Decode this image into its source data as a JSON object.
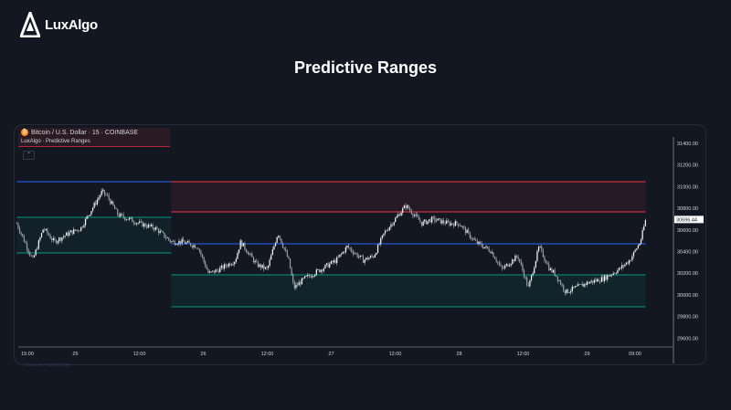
{
  "brand": {
    "logo_text": "LuxAlgo"
  },
  "page_title": "Predictive Ranges",
  "chart_header": {
    "symbol": "Bitcoin / U.S. Dollar · 15 · COINBASE",
    "indicator": "LuxAlgo · Predictive Ranges",
    "collapse_icon": "chevron-up-icon"
  },
  "credit": "Charts by TradingView",
  "colors": {
    "background": "#131722",
    "resistance": "#f23645",
    "average": "#2962ff",
    "support": "#089981",
    "candle": "#ffffff"
  },
  "chart_data": {
    "type": "candlestick",
    "title": "",
    "yticks": [
      31400,
      31200,
      31000,
      30800,
      30600,
      30400,
      30200,
      30000,
      29800,
      29600
    ],
    "ytick_labels": [
      "31400.00",
      "31200.00",
      "31000.00",
      "30800.00",
      "30600.00",
      "30400.00",
      "30200.00",
      "30000.00",
      "29800.00",
      "29600.00"
    ],
    "ylim": [
      29520,
      31450
    ],
    "xtick_labels": [
      {
        "t": "24 15:00",
        "label": "15:00"
      },
      {
        "t": "25 00:00",
        "label": "25"
      },
      {
        "t": "25 12:00",
        "label": "12:00"
      },
      {
        "t": "26 00:00",
        "label": "26"
      },
      {
        "t": "26 12:00",
        "label": "12:00"
      },
      {
        "t": "27 00:00",
        "label": "27"
      },
      {
        "t": "27 12:00",
        "label": "12:00"
      },
      {
        "t": "28 00:00",
        "label": "28"
      },
      {
        "t": "28 12:00",
        "label": "12:00"
      },
      {
        "t": "29 00:00",
        "label": "29"
      },
      {
        "t": "29 09:00",
        "label": "09:00"
      }
    ],
    "last_price": 30696.44,
    "last_price_label": "30696.44",
    "price_path": [
      [
        "24 13:00",
        30660
      ],
      [
        "24 16:00",
        30320
      ],
      [
        "24 18:00",
        30615
      ],
      [
        "24 20:00",
        30490
      ],
      [
        "24 23:00",
        30575
      ],
      [
        "25 01:00",
        30615
      ],
      [
        "25 03:00",
        30785
      ],
      [
        "25 05:00",
        30955
      ],
      [
        "25 06:00",
        30910
      ],
      [
        "25 08:00",
        30740
      ],
      [
        "25 12:00",
        30660
      ],
      [
        "25 15:00",
        30615
      ],
      [
        "25 18:00",
        30490
      ],
      [
        "25 20:00",
        30490
      ],
      [
        "25 23:00",
        30445
      ],
      [
        "26 01:00",
        30195
      ],
      [
        "26 03:00",
        30235
      ],
      [
        "26 06:00",
        30320
      ],
      [
        "26 07:00",
        30490
      ],
      [
        "26 10:00",
        30280
      ],
      [
        "26 12:00",
        30235
      ],
      [
        "26 14:00",
        30575
      ],
      [
        "26 16:00",
        30320
      ],
      [
        "26 17:00",
        30065
      ],
      [
        "26 19:00",
        30150
      ],
      [
        "26 22:00",
        30235
      ],
      [
        "27 01:00",
        30320
      ],
      [
        "27 03:00",
        30445
      ],
      [
        "27 06:00",
        30320
      ],
      [
        "27 08:00",
        30360
      ],
      [
        "27 10:00",
        30575
      ],
      [
        "27 12:00",
        30700
      ],
      [
        "27 14:00",
        30825
      ],
      [
        "27 17:00",
        30660
      ],
      [
        "27 19:00",
        30700
      ],
      [
        "27 22:00",
        30660
      ],
      [
        "28 00:00",
        30660
      ],
      [
        "28 03:00",
        30490
      ],
      [
        "28 06:00",
        30405
      ],
      [
        "28 08:00",
        30235
      ],
      [
        "28 11:00",
        30360
      ],
      [
        "28 13:00",
        30065
      ],
      [
        "28 15:00",
        30445
      ],
      [
        "28 17:00",
        30235
      ],
      [
        "28 18:00",
        30195
      ],
      [
        "28 20:00",
        30025
      ],
      [
        "29 00:00",
        30110
      ],
      [
        "29 03:00",
        30150
      ],
      [
        "29 06:00",
        30235
      ],
      [
        "29 08:00",
        30320
      ],
      [
        "29 10:00",
        30490
      ],
      [
        "29 11:00",
        30696.44
      ]
    ],
    "ranges": [
      {
        "from": "24 13:00",
        "to": "25 18:00",
        "upper": 31045,
        "average": 30716,
        "lower": 30387
      },
      {
        "from": "25 18:00",
        "to": "29 11:00",
        "r2": 31045,
        "r1": 30767,
        "average": 30472,
        "s1": 30185,
        "s2": 29889
      }
    ]
  }
}
